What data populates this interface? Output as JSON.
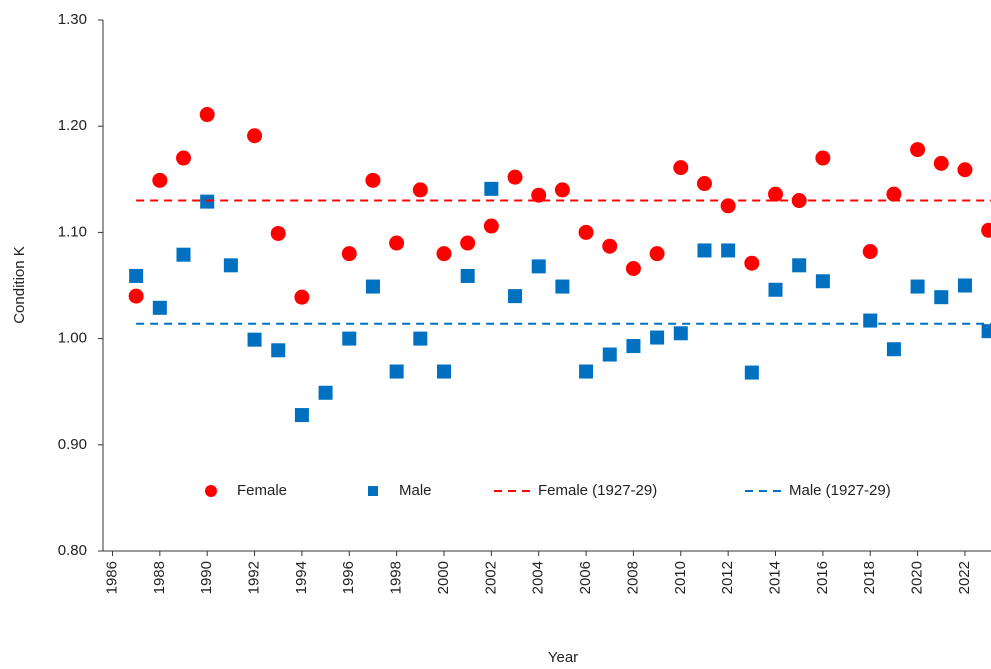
{
  "chart_data": {
    "type": "scatter",
    "x_label": "Year",
    "y_label": "Condition K",
    "xlim": [
      1985.6,
      2023.1
    ],
    "ylim": [
      0.8,
      1.3
    ],
    "xticks": [
      1986,
      1988,
      1990,
      1992,
      1994,
      1996,
      1998,
      2000,
      2002,
      2004,
      2006,
      2008,
      2010,
      2012,
      2014,
      2016,
      2018,
      2020,
      2022
    ],
    "yticks": [
      {
        "value": 0.8,
        "label": "0.80"
      },
      {
        "value": 0.9,
        "label": "0.90"
      },
      {
        "value": 1.0,
        "label": "1.00"
      },
      {
        "value": 1.1,
        "label": "1.10"
      },
      {
        "value": 1.2,
        "label": "1.20"
      },
      {
        "value": 1.3,
        "label": "1.30"
      }
    ],
    "series": [
      {
        "name": "Female",
        "color": "#ff0000",
        "marker": "circle",
        "x": [
          1987,
          1988,
          1989,
          1990,
          1992,
          1993,
          1994,
          1996,
          1997,
          1998,
          1999,
          2000,
          2001,
          2002,
          2003,
          2004,
          2005,
          2006,
          2007,
          2008,
          2009,
          2010,
          2011,
          2012,
          2013,
          2014,
          2015,
          2016,
          2018,
          2019,
          2020,
          2021,
          2022,
          2023
        ],
        "values": [
          1.04,
          1.149,
          1.17,
          1.211,
          1.191,
          1.099,
          1.039,
          1.08,
          1.149,
          1.09,
          1.14,
          1.08,
          1.09,
          1.106,
          1.152,
          1.135,
          1.14,
          1.1,
          1.087,
          1.066,
          1.08,
          1.161,
          1.146,
          1.125,
          1.071,
          1.136,
          1.13,
          1.17,
          1.082,
          1.136,
          1.178,
          1.165,
          1.159,
          1.102
        ]
      },
      {
        "name": "Male",
        "color": "#0070c0",
        "marker": "square",
        "x": [
          1987,
          1988,
          1989,
          1990,
          1991,
          1992,
          1993,
          1994,
          1995,
          1996,
          1997,
          1998,
          1999,
          2000,
          2001,
          2002,
          2003,
          2004,
          2005,
          2006,
          2007,
          2008,
          2009,
          2010,
          2011,
          2012,
          2013,
          2014,
          2015,
          2016,
          2018,
          2019,
          2020,
          2021,
          2022,
          2023
        ],
        "values": [
          1.059,
          1.029,
          1.079,
          1.129,
          1.069,
          0.999,
          0.989,
          0.928,
          0.949,
          1.0,
          1.049,
          0.969,
          1.0,
          0.969,
          1.059,
          1.141,
          1.04,
          1.068,
          1.049,
          0.969,
          0.985,
          0.993,
          1.001,
          1.005,
          1.083,
          1.083,
          0.968,
          1.046,
          1.069,
          1.054,
          1.017,
          0.99,
          1.049,
          1.039,
          1.05,
          1.007
        ]
      },
      {
        "name": "Female (1927-29)",
        "color": "#ff0000",
        "marker": "dashed-line",
        "x": [
          1987,
          2023.1
        ],
        "values": [
          1.13,
          1.13
        ]
      },
      {
        "name": "Male (1927-29)",
        "color": "#0070c0",
        "marker": "dashed-line",
        "x": [
          1987,
          2023.1
        ],
        "values": [
          1.014,
          1.014
        ]
      }
    ]
  }
}
